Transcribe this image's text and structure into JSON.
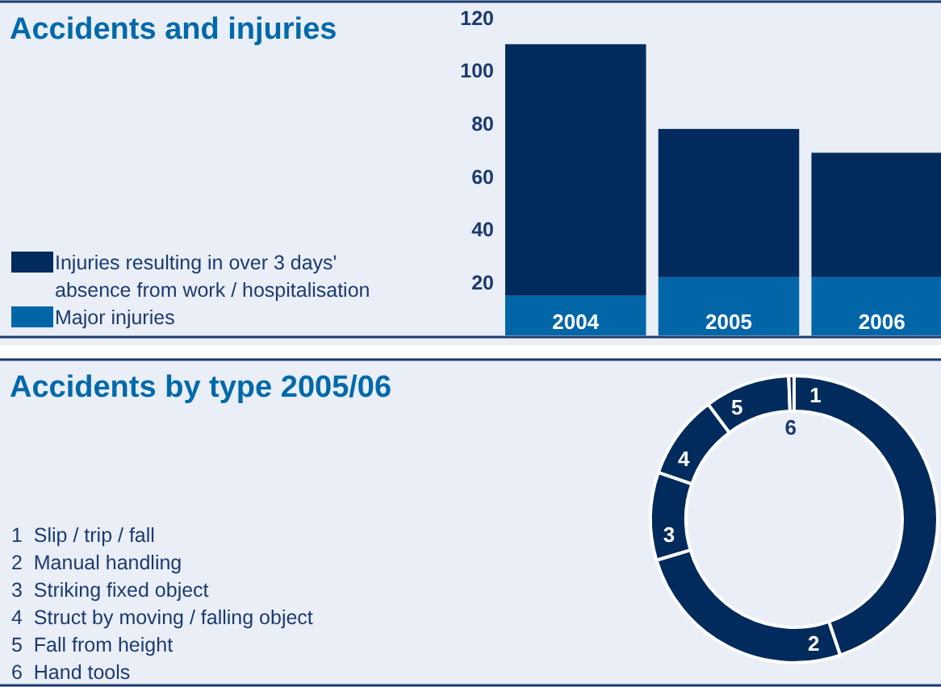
{
  "chart_data": [
    {
      "type": "bar",
      "title": "Accidents and injuries",
      "categories": [
        "2004",
        "2005",
        "2006"
      ],
      "stacked": true,
      "series": [
        {
          "name": "Major injuries",
          "color": "#0066a8",
          "values": [
            15,
            22,
            22
          ]
        },
        {
          "name": "Injuries resulting in over 3 days' absence from work / hospitalisation",
          "color": "#002b5c",
          "values": [
            95,
            56,
            47
          ]
        }
      ],
      "ylim": [
        0,
        120
      ],
      "yticks": [
        20,
        40,
        60,
        80,
        100,
        120
      ],
      "legend": "left"
    },
    {
      "type": "donut",
      "title": "Accidents by type 2005/06",
      "categories": [
        "1",
        "2",
        "3",
        "4",
        "5",
        "6"
      ],
      "annotations": [
        "1  Slip / trip / fall",
        "2  Manual handling",
        "3  Striking fixed object",
        "4  Struct by moving / falling object",
        "5  Fall from height",
        "6  Hand tools"
      ],
      "values": [
        44.8,
        25.6,
        9.9,
        9.5,
        9.6,
        0.6
      ],
      "colors": [
        "#002b5c",
        "#002b5c",
        "#002b5c",
        "#002b5c",
        "#002b5c",
        "#002b5c"
      ]
    }
  ]
}
